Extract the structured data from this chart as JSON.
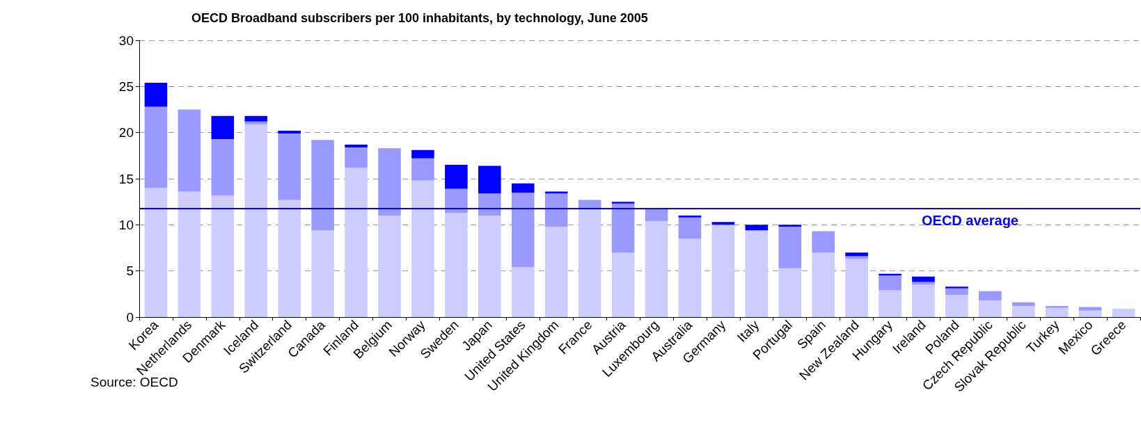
{
  "chart_data": {
    "type": "bar",
    "title": "OECD Broadband subscribers per 100 inhabitants, by technology, June 2005",
    "stacked": true,
    "categories": [
      "Korea",
      "Netherlands",
      "Denmark",
      "Iceland",
      "Switzerland",
      "Canada",
      "Finland",
      "Belgium",
      "Norway",
      "Sweden",
      "Japan",
      "United States",
      "United Kingdom",
      "France",
      "Austria",
      "Luxembourg",
      "Australia",
      "Germany",
      "Italy",
      "Portugal",
      "Spain",
      "New Zealand",
      "Hungary",
      "Ireland",
      "Poland",
      "Czech Republic",
      "Slovak Republic",
      "Turkey",
      "Mexico",
      "Greece"
    ],
    "series": [
      {
        "color": "#ccccff",
        "values": [
          14.0,
          13.6,
          13.2,
          20.9,
          12.7,
          9.4,
          16.2,
          11.0,
          14.8,
          11.3,
          11.0,
          5.4,
          9.8,
          11.7,
          7.0,
          10.4,
          8.5,
          10.0,
          9.4,
          5.3,
          7.0,
          6.3,
          2.9,
          3.5,
          2.4,
          1.8,
          1.2,
          1.0,
          0.7,
          0.9
        ]
      },
      {
        "color": "#9999ff",
        "values": [
          8.8,
          8.9,
          6.1,
          0.3,
          7.2,
          9.8,
          2.2,
          7.3,
          2.4,
          2.6,
          2.4,
          8.1,
          3.6,
          1.0,
          5.3,
          1.3,
          2.3,
          null,
          null,
          4.5,
          2.3,
          0.3,
          1.6,
          0.3,
          0.7,
          1.0,
          0.4,
          0.2,
          0.4,
          null
        ]
      },
      {
        "color": "#0000ff",
        "values": [
          2.6,
          null,
          2.5,
          0.6,
          0.3,
          null,
          0.3,
          null,
          0.9,
          2.6,
          3.0,
          1.0,
          0.2,
          null,
          0.2,
          null,
          0.2,
          0.3,
          0.6,
          0.2,
          null,
          0.4,
          0.2,
          0.6,
          0.2,
          null,
          null,
          null,
          null,
          null
        ]
      }
    ],
    "ylim": [
      0,
      30
    ],
    "yticks": [
      0,
      5,
      10,
      15,
      20,
      25,
      30
    ],
    "grid": "y",
    "ref_lines": [
      {
        "axis": "y",
        "value": 11.8,
        "label": "OECD average",
        "color": "#0000ff"
      }
    ],
    "annotations": [
      "Source: OECD"
    ]
  }
}
